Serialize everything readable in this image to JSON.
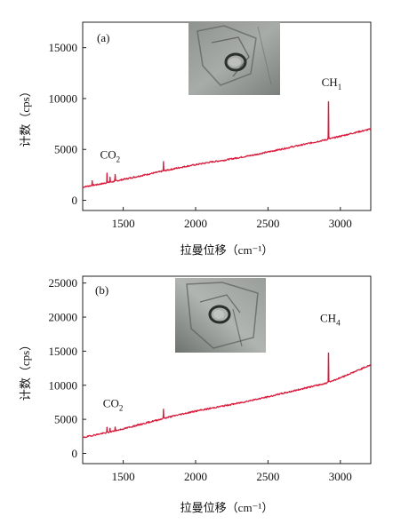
{
  "chart_data": [
    {
      "panel": "(a)",
      "type": "line",
      "xlabel": "拉曼位移（cm⁻¹）",
      "ylabel": "计数（cps）",
      "xlim": [
        1220,
        3210
      ],
      "ylim": [
        -1000,
        17500
      ],
      "xticks": [
        1500,
        2000,
        2500,
        3000
      ],
      "yticks": [
        0,
        5000,
        10000,
        15000
      ],
      "series": [
        {
          "color": "#d81b3c",
          "x": [
            1220,
            1300,
            1400,
            1500,
            1600,
            1700,
            1800,
            1900,
            2000,
            2100,
            2200,
            2300,
            2400,
            2500,
            2600,
            2700,
            2800,
            2900,
            3000,
            3100,
            3210
          ],
          "y": [
            1300,
            1500,
            1750,
            2050,
            2350,
            2650,
            2950,
            3250,
            3500,
            3750,
            3950,
            4200,
            4450,
            4750,
            5050,
            5350,
            5650,
            5950,
            6300,
            6650,
            7000
          ]
        }
      ],
      "peaks": [
        {
          "x": 1285,
          "height": 500
        },
        {
          "x": 1388,
          "height": 1000
        },
        {
          "x": 1409,
          "height": 500
        },
        {
          "x": 1444,
          "height": 700
        },
        {
          "x": 1778,
          "height": 900
        },
        {
          "x": 2918,
          "height": 3700
        }
      ],
      "annotations": [
        {
          "base": "CO",
          "sub": "2",
          "x": 1340,
          "y": 4100
        },
        {
          "base": "CH",
          "sub": "1",
          "x": 2870,
          "y": 11200
        }
      ]
    },
    {
      "panel": "(b)",
      "type": "line",
      "xlabel": "拉曼位移（cm⁻¹）",
      "ylabel": "计数（cps）",
      "xlim": [
        1220,
        3210
      ],
      "ylim": [
        -1500,
        26000
      ],
      "xticks": [
        1500,
        2000,
        2500,
        3000
      ],
      "yticks": [
        0,
        5000,
        10000,
        15000,
        20000,
        25000
      ],
      "series": [
        {
          "color": "#d81b3c",
          "x": [
            1220,
            1300,
            1400,
            1500,
            1600,
            1700,
            1800,
            1900,
            2000,
            2100,
            2200,
            2300,
            2400,
            2500,
            2600,
            2700,
            2800,
            2900,
            3000,
            3100,
            3210
          ],
          "y": [
            2300,
            2700,
            3100,
            3600,
            4150,
            4700,
            5250,
            5750,
            6200,
            6600,
            7000,
            7400,
            7850,
            8300,
            8800,
            9300,
            9800,
            10300,
            11100,
            12000,
            13000
          ]
        }
      ],
      "peaks": [
        {
          "x": 1388,
          "height": 800
        },
        {
          "x": 1409,
          "height": 600
        },
        {
          "x": 1444,
          "height": 600
        },
        {
          "x": 1778,
          "height": 1400
        },
        {
          "x": 2918,
          "height": 4300
        }
      ],
      "annotations": [
        {
          "base": "CO",
          "sub": "2",
          "x": 1360,
          "y": 6800
        },
        {
          "base": "CH",
          "sub": "4",
          "x": 2860,
          "y": 19300
        }
      ]
    }
  ]
}
